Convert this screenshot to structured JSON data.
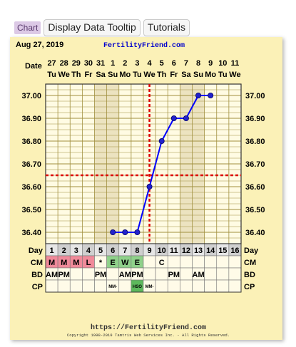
{
  "toolbar": {
    "chart_tab": "Chart",
    "tooltip_button": "Display Data Tooltip",
    "tutorials_button": "Tutorials"
  },
  "header": {
    "date_text": "Aug 27, 2019",
    "brand": "FertilityFriend.com",
    "date_row_label": "Date"
  },
  "footer": {
    "url": "https://FertilityFriend.com",
    "copyright": "Copyright 1998-2019 Tamtris Web Services Inc. - All Rights Reserved."
  },
  "colors": {
    "panel_bg": "#fbf1b7",
    "line": "#0000ff",
    "marker_fill": "#2222cc",
    "coverline": "#dd0000",
    "grid": "#a08f3e",
    "m_cell": "#f08a9a",
    "ew_cell": "#8fd18a",
    "hso_cell": "#5cb85c",
    "day_cell_a": "#e6e6e6",
    "day_cell_b": "#cfcfcf",
    "weekend_bg": "#ece3c0",
    "weekday_bg": "#fffbe3"
  },
  "chart_data": {
    "type": "line",
    "dates": [
      "27",
      "28",
      "29",
      "30",
      "31",
      "1",
      "2",
      "3",
      "4",
      "5",
      "6",
      "7",
      "8",
      "9",
      "10",
      "11"
    ],
    "weekdays": [
      "Tu",
      "We",
      "Th",
      "Fr",
      "Sa",
      "Su",
      "Mo",
      "Tu",
      "We",
      "Th",
      "Fr",
      "Sa",
      "Su",
      "Mo",
      "Tu",
      "We"
    ],
    "days": [
      "1",
      "2",
      "3",
      "4",
      "5",
      "6",
      "7",
      "8",
      "9",
      "10",
      "11",
      "12",
      "13",
      "14",
      "15",
      "16"
    ],
    "y_ticks": [
      "37.00",
      "36.90",
      "36.80",
      "36.70",
      "36.60",
      "36.50",
      "36.40"
    ],
    "ylim": [
      36.35,
      37.05
    ],
    "coverline": 36.65,
    "ovulation_day": 9,
    "series": [
      {
        "x": [
          6,
          7,
          8,
          9,
          10,
          11,
          12,
          13,
          14
        ],
        "y": [
          36.4,
          36.4,
          36.4,
          36.6,
          36.8,
          36.9,
          36.9,
          37.0,
          37.0
        ]
      }
    ],
    "grid": true,
    "rows": [
      {
        "label": "Day",
        "values": [
          "1",
          "2",
          "3",
          "4",
          "5",
          "6",
          "7",
          "8",
          "9",
          "10",
          "11",
          "12",
          "13",
          "14",
          "15",
          "16"
        ]
      },
      {
        "label": "CM",
        "values": [
          "M",
          "M",
          "M",
          "L",
          "*",
          "E",
          "W",
          "E",
          "",
          "C",
          "",
          "",
          "",
          "",
          "",
          ""
        ]
      },
      {
        "label": "BD",
        "values": [
          "AM",
          "PM",
          "",
          "",
          "PM",
          "",
          "AM",
          "PM",
          "",
          "",
          "PM",
          "",
          "AM",
          "",
          "",
          ""
        ]
      },
      {
        "label": "CP",
        "values": [
          "",
          "",
          "",
          "",
          "",
          "MM-",
          "",
          "HSO",
          "MM-",
          "",
          "",
          "",
          "",
          "",
          "",
          ""
        ]
      }
    ]
  }
}
